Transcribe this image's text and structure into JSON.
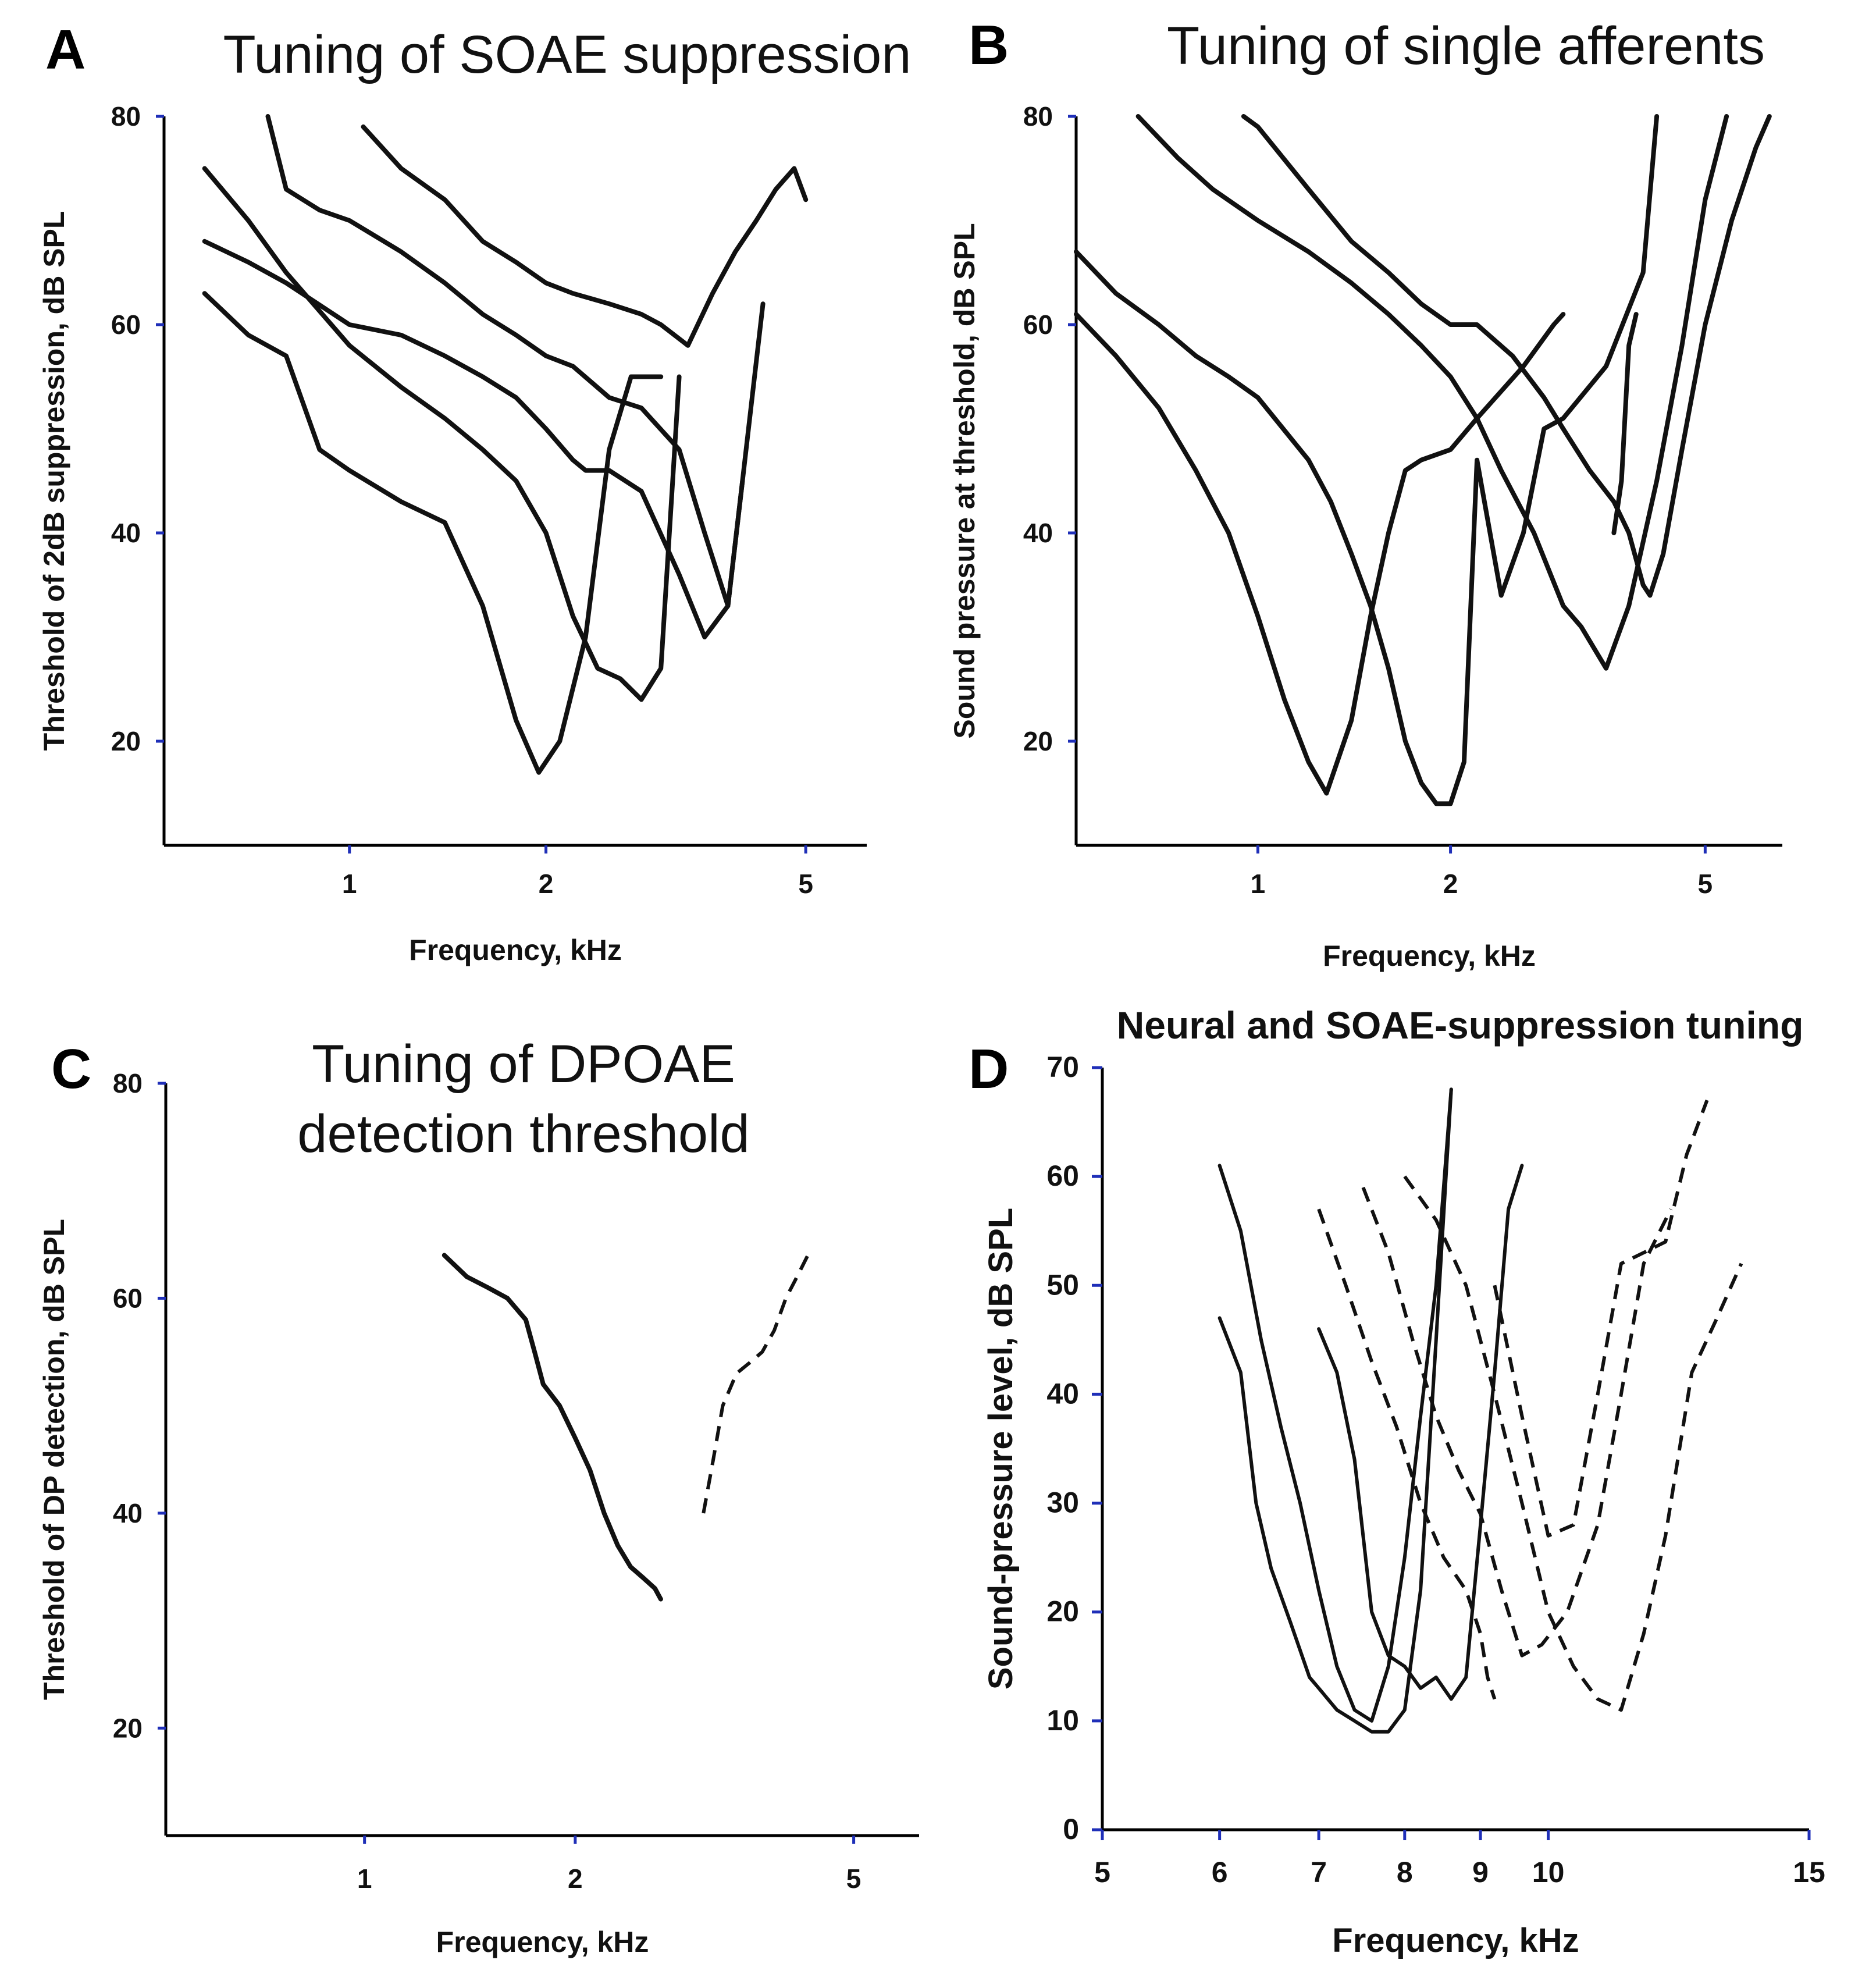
{
  "chart_data": [
    {
      "panel": "A",
      "type": "line",
      "title": "Tuning of SOAE suppression",
      "xlabel": "Frequency, kHz",
      "ylabel": "Threshold of 2dB suppression, dB SPL",
      "xscale": "log",
      "xlim": [
        0.52,
        6.2
      ],
      "ylim": [
        10,
        80
      ],
      "xticks": [
        1,
        2,
        5
      ],
      "yticks": [
        20,
        40,
        60,
        80
      ],
      "xtick_labels": [
        "1",
        "2",
        "5"
      ],
      "ytick_labels": [
        "20",
        "40",
        "60",
        "80"
      ],
      "series": [
        {
          "name": "curve-1",
          "x": [
            0.6,
            0.7,
            0.8,
            0.9,
            1.0,
            1.2,
            1.4,
            1.6,
            1.8,
            1.95,
            2.1,
            2.3,
            2.5,
            2.7,
            3.0
          ],
          "y": [
            63,
            59,
            57,
            48,
            46,
            43,
            41,
            33,
            22,
            17,
            20,
            30,
            48,
            55,
            55
          ]
        },
        {
          "name": "curve-2",
          "x": [
            0.6,
            0.7,
            0.8,
            1.0,
            1.2,
            1.4,
            1.6,
            1.8,
            2.0,
            2.2,
            2.4,
            2.6,
            2.8,
            3.0,
            3.2
          ],
          "y": [
            75,
            70,
            65,
            58,
            54,
            51,
            48,
            45,
            40,
            32,
            27,
            26,
            24,
            27,
            55
          ]
        },
        {
          "name": "curve-3",
          "x": [
            0.6,
            0.7,
            0.8,
            1.0,
            1.2,
            1.4,
            1.6,
            1.8,
            2.0,
            2.2,
            2.3,
            2.5,
            2.8,
            3.2,
            3.5,
            3.8,
            4.0
          ],
          "y": [
            68,
            66,
            64,
            60,
            59,
            57,
            55,
            53,
            50,
            47,
            46,
            46,
            44,
            36,
            30,
            33,
            45
          ]
        },
        {
          "name": "curve-4",
          "x": [
            0.75,
            0.8,
            0.9,
            1.0,
            1.2,
            1.4,
            1.6,
            1.8,
            2.0,
            2.2,
            2.5,
            2.8,
            3.2,
            3.5,
            3.8,
            4.0,
            4.3
          ],
          "y": [
            80,
            73,
            71,
            70,
            67,
            64,
            61,
            59,
            57,
            56,
            53,
            52,
            48,
            40,
            33,
            45,
            62
          ]
        },
        {
          "name": "curve-5",
          "x": [
            1.05,
            1.2,
            1.4,
            1.6,
            1.8,
            2.0,
            2.2,
            2.5,
            2.8,
            3.0,
            3.3,
            3.6,
            3.9,
            4.2,
            4.5,
            4.8,
            5.0
          ],
          "y": [
            79,
            75,
            72,
            68,
            66,
            64,
            63,
            62,
            61,
            60,
            58,
            63,
            67,
            70,
            73,
            75,
            72
          ]
        }
      ]
    },
    {
      "panel": "B",
      "type": "line",
      "title": "Tuning of single afferents",
      "xlabel": "Frequency, kHz",
      "ylabel": "Sound pressure at threshold, dB SPL",
      "xscale": "log",
      "xlim": [
        0.52,
        6.6
      ],
      "ylim": [
        10,
        80
      ],
      "xticks": [
        1,
        2,
        5
      ],
      "yticks": [
        20,
        40,
        60,
        80
      ],
      "xtick_labels": [
        "1",
        "2",
        "5"
      ],
      "ytick_labels": [
        "20",
        "40",
        "60",
        "80"
      ],
      "series": [
        {
          "name": "unit-1",
          "x": [
            0.52,
            0.6,
            0.7,
            0.8,
            0.9,
            1.0,
            1.1,
            1.2,
            1.28,
            1.4,
            1.5,
            1.6,
            1.7,
            1.8,
            2.0,
            2.2,
            2.6,
            2.9,
            3.0
          ],
          "y": [
            61,
            57,
            52,
            46,
            40,
            32,
            24,
            18,
            15,
            22,
            32,
            40,
            46,
            47,
            48,
            51,
            56,
            60,
            61
          ]
        },
        {
          "name": "unit-2",
          "x": [
            0.52,
            0.6,
            0.7,
            0.8,
            0.9,
            1.0,
            1.2,
            1.3,
            1.4,
            1.5,
            1.6,
            1.7,
            1.8,
            1.9,
            2.0,
            2.1,
            2.2,
            2.4,
            2.6,
            2.8,
            3.0,
            3.5,
            4.0,
            4.2
          ],
          "y": [
            67,
            63,
            60,
            57,
            55,
            53,
            47,
            43,
            38,
            33,
            27,
            20,
            16,
            14,
            14,
            18,
            47,
            34,
            40,
            50,
            51,
            56,
            65,
            80
          ]
        },
        {
          "name": "unit-3",
          "x": [
            0.65,
            0.75,
            0.85,
            1.0,
            1.2,
            1.4,
            1.6,
            1.8,
            2.0,
            2.2,
            2.4,
            2.7,
            3.0,
            3.2,
            3.5,
            3.8,
            4.2,
            4.6,
            5.0,
            5.4
          ],
          "y": [
            80,
            76,
            73,
            70,
            67,
            64,
            61,
            58,
            55,
            51,
            46,
            40,
            33,
            31,
            27,
            33,
            45,
            58,
            72,
            80
          ]
        },
        {
          "name": "unit-4",
          "x": [
            0.95,
            1.0,
            1.2,
            1.4,
            1.6,
            1.8,
            2.0,
            2.2,
            2.5,
            2.8,
            3.0,
            3.3,
            3.6,
            3.8,
            4.0,
            4.1,
            4.3,
            4.6,
            5.0,
            5.5,
            6.0,
            6.3
          ],
          "y": [
            80,
            79,
            73,
            68,
            65,
            62,
            60,
            60,
            57,
            53,
            50,
            46,
            43,
            40,
            35,
            34,
            38,
            48,
            60,
            70,
            77,
            80
          ]
        },
        {
          "name": "unit-5",
          "x": [
            3.6,
            3.7,
            3.8,
            3.9
          ],
          "y": [
            40,
            45,
            58,
            61
          ]
        }
      ]
    },
    {
      "panel": "C",
      "type": "line",
      "title": "Tuning of DPOAE detection threshold",
      "title_lines": [
        "Tuning of DPOAE",
        "detection threshold"
      ],
      "xlabel": "Frequency, kHz",
      "ylabel": "Threshold of DP detection, dB SPL",
      "xscale": "log",
      "xlim": [
        0.52,
        6.2
      ],
      "ylim": [
        10,
        80
      ],
      "xticks": [
        1,
        2,
        5
      ],
      "yticks": [
        20,
        40,
        60,
        80
      ],
      "xtick_labels": [
        "1",
        "2",
        "5"
      ],
      "ytick_labels": [
        "20",
        "40",
        "60",
        "80"
      ],
      "series": [
        {
          "name": "low-side",
          "style": "solid",
          "x": [
            1.3,
            1.4,
            1.5,
            1.6,
            1.7,
            1.75,
            1.8,
            1.9,
            2.0,
            2.1,
            2.2,
            2.3,
            2.4,
            2.5,
            2.6,
            2.65
          ],
          "y": [
            64,
            62,
            61,
            60,
            58,
            55,
            52,
            50,
            47,
            44,
            40,
            37,
            35,
            34,
            33,
            32
          ]
        },
        {
          "name": "high-side",
          "style": "dashed",
          "x": [
            3.05,
            3.15,
            3.25,
            3.4,
            3.55,
            3.7,
            3.85,
            4.0,
            4.15,
            4.3
          ],
          "y": [
            40,
            45,
            50,
            53,
            54,
            55,
            57,
            60,
            62,
            64
          ]
        }
      ]
    },
    {
      "panel": "D",
      "type": "line",
      "title": "Neural and SOAE-suppression tuning",
      "xlabel": "Frequency, kHz",
      "ylabel": "Sound-pressure level, dB SPL",
      "xscale": "log",
      "xlim": [
        5,
        15
      ],
      "ylim": [
        0,
        70
      ],
      "xticks": [
        5,
        6,
        7,
        8,
        9,
        10,
        15
      ],
      "yticks": [
        0,
        10,
        20,
        30,
        40,
        50,
        60,
        70
      ],
      "xtick_labels": [
        "5",
        "6",
        "7",
        "8",
        "9",
        "10",
        "15"
      ],
      "ytick_labels": [
        "0",
        "10",
        "20",
        "30",
        "40",
        "50",
        "60",
        "70"
      ],
      "series": [
        {
          "name": "neural-1",
          "style": "solid",
          "x": [
            6.0,
            6.2,
            6.35,
            6.5,
            6.7,
            6.9,
            7.0,
            7.2,
            7.4,
            7.6,
            7.8,
            8.0,
            8.2,
            8.4,
            8.6
          ],
          "y": [
            47,
            42,
            30,
            24,
            19,
            14,
            13,
            11,
            10,
            9,
            9,
            11,
            22,
            45,
            68
          ]
        },
        {
          "name": "neural-2",
          "style": "solid",
          "x": [
            6.0,
            6.2,
            6.4,
            6.6,
            6.8,
            7.0,
            7.2,
            7.4,
            7.6,
            7.8,
            8.0,
            8.2,
            8.4,
            8.6
          ],
          "y": [
            61,
            55,
            45,
            37,
            30,
            22,
            15,
            11,
            10,
            15,
            25,
            38,
            50,
            68
          ]
        },
        {
          "name": "neural-3",
          "style": "solid",
          "x": [
            7.0,
            7.2,
            7.4,
            7.6,
            7.8,
            8.0,
            8.2,
            8.4,
            8.6,
            8.8,
            9.0,
            9.2,
            9.4,
            9.6
          ],
          "y": [
            46,
            42,
            34,
            20,
            16,
            15,
            13,
            14,
            12,
            14,
            28,
            42,
            57,
            61
          ]
        },
        {
          "name": "soae-1",
          "style": "dashed",
          "x": [
            7.0,
            7.3,
            7.6,
            7.9,
            8.2,
            8.5,
            8.8,
            9.0,
            9.1,
            9.2
          ],
          "y": [
            57,
            50,
            43,
            37,
            30,
            25,
            22,
            18,
            14,
            12
          ]
        },
        {
          "name": "soae-2",
          "style": "dashed",
          "x": [
            7.5,
            7.8,
            8.1,
            8.4,
            8.7,
            9.0,
            9.3,
            9.6,
            9.9,
            10.3,
            10.8,
            11.2,
            11.6,
            12.1
          ],
          "y": [
            59,
            53,
            45,
            38,
            33,
            29,
            22,
            16,
            17,
            20,
            28,
            40,
            52,
            57
          ]
        },
        {
          "name": "soae-3",
          "style": "dashed",
          "x": [
            8.0,
            8.4,
            8.8,
            9.2,
            9.6,
            10.0,
            10.4,
            10.8,
            11.2,
            11.6,
            12.0,
            12.5,
            13.0,
            13.5
          ],
          "y": [
            60,
            56,
            50,
            40,
            30,
            20,
            15,
            12,
            11,
            18,
            27,
            42,
            47,
            52
          ]
        },
        {
          "name": "soae-4",
          "style": "dashed",
          "x": [
            9.2,
            9.6,
            10.0,
            10.4,
            10.8,
            11.2,
            11.6,
            12.0,
            12.4,
            12.8
          ],
          "y": [
            50,
            38,
            27,
            28,
            40,
            52,
            53,
            54,
            62,
            67
          ]
        }
      ]
    }
  ],
  "panels": {
    "A": {
      "letter": "A"
    },
    "B": {
      "letter": "B"
    },
    "C": {
      "letter": "C"
    },
    "D": {
      "letter": "D"
    }
  }
}
